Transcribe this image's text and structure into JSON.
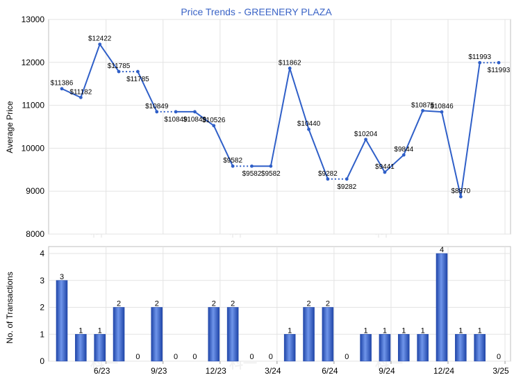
{
  "chart_data": [
    {
      "type": "line",
      "title": "Price Trends - GREENERY PLAZA",
      "ylabel": "Average Price",
      "ylim": [
        8000,
        13000
      ],
      "y_ticks": [
        8000,
        9000,
        10000,
        11000,
        12000,
        13000
      ],
      "grid": true,
      "line_color": "#2f5fc8",
      "months": [
        "4/23",
        "5/23",
        "6/23",
        "7/23",
        "8/23",
        "9/23",
        "10/23",
        "11/23",
        "12/23",
        "1/24",
        "2/24",
        "3/24",
        "4/24",
        "5/24",
        "6/24",
        "7/24",
        "8/24",
        "9/24",
        "10/24",
        "11/24",
        "12/24",
        "1/25",
        "2/25",
        "3/25"
      ],
      "values": [
        11386,
        11182,
        12422,
        11785,
        11785,
        10849,
        10849,
        10849,
        10526,
        9582,
        9582,
        9582,
        11862,
        10440,
        9282,
        9282,
        10204,
        9441,
        9844,
        10875,
        10846,
        8870,
        11993,
        11993
      ],
      "interpolated": [
        false,
        false,
        false,
        false,
        true,
        false,
        true,
        false,
        false,
        false,
        true,
        false,
        false,
        false,
        false,
        true,
        false,
        false,
        false,
        false,
        false,
        false,
        false,
        true
      ],
      "labels": [
        "$11386",
        "$11182",
        "$12422",
        "$11785",
        "$11785",
        "$10849",
        "$10849",
        "$10849",
        "$10526",
        "$9582",
        "$9582",
        "$9582",
        "$11862",
        "$10440",
        "$9282",
        "$9282",
        "$10204",
        "$9441",
        "$9844",
        "$10875",
        "$10846",
        "$8870",
        "$11993",
        "$11993"
      ]
    },
    {
      "type": "bar",
      "ylabel": "No. of Transactions",
      "ylim": [
        0,
        4
      ],
      "y_ticks": [
        0,
        1,
        2,
        3,
        4
      ],
      "grid": true,
      "bar_color": "#3d6bd4",
      "categories": [
        "4/23",
        "5/23",
        "6/23",
        "7/23",
        "8/23",
        "9/23",
        "10/23",
        "11/23",
        "12/23",
        "1/24",
        "2/24",
        "3/24",
        "4/24",
        "5/24",
        "6/24",
        "7/24",
        "8/24",
        "9/24",
        "10/24",
        "11/24",
        "12/24",
        "1/25",
        "2/25",
        "3/25"
      ],
      "values": [
        3,
        1,
        1,
        2,
        0,
        2,
        0,
        0,
        2,
        2,
        0,
        0,
        1,
        2,
        2,
        0,
        1,
        1,
        1,
        1,
        4,
        1,
        1,
        0
      ],
      "x_tick_labels": [
        "6/23",
        "9/23",
        "12/23",
        "3/24",
        "6/24",
        "9/24",
        "12/24",
        "3/25"
      ],
      "x_tick_indices": [
        2,
        5,
        8,
        11,
        14,
        17,
        20,
        23
      ]
    }
  ],
  "watermark": "科一"
}
